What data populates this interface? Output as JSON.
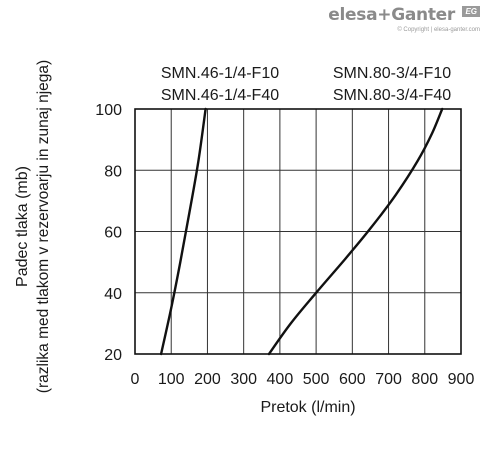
{
  "branding": {
    "logo_text": "elesa+Ganter",
    "badge_text": "EG",
    "copyright": "© Copyright | elesa-ganter.com"
  },
  "chart_data": {
    "type": "line",
    "title": "",
    "xlabel": "Pretok (l/min)",
    "ylabel_line1": "Padec tlaka (mb)",
    "ylabel_line2": "(razlika med tlakom v rezervoarju in zunaj njega)",
    "xlim": [
      0,
      900
    ],
    "ylim": [
      20,
      100
    ],
    "x_ticks": [
      0,
      100,
      200,
      300,
      400,
      500,
      600,
      700,
      800,
      900
    ],
    "y_ticks": [
      20,
      40,
      60,
      80,
      100
    ],
    "grid": true,
    "series": [
      {
        "labels": [
          "SMN.46-1/4-F10",
          "SMN.46-1/4-F40"
        ],
        "points": [
          [
            72,
            20
          ],
          [
            100,
            35
          ],
          [
            125,
            50
          ],
          [
            150,
            66
          ],
          [
            175,
            83
          ],
          [
            195,
            100
          ]
        ]
      },
      {
        "labels": [
          "SMN.80-3/4-F10",
          "SMN.80-3/4-F40"
        ],
        "points": [
          [
            370,
            20
          ],
          [
            430,
            30
          ],
          [
            500,
            40
          ],
          [
            580,
            51
          ],
          [
            650,
            61
          ],
          [
            720,
            72
          ],
          [
            780,
            83
          ],
          [
            820,
            92
          ],
          [
            848,
            100
          ]
        ]
      }
    ],
    "line_color": "#111111",
    "grid_color": "#333333"
  }
}
